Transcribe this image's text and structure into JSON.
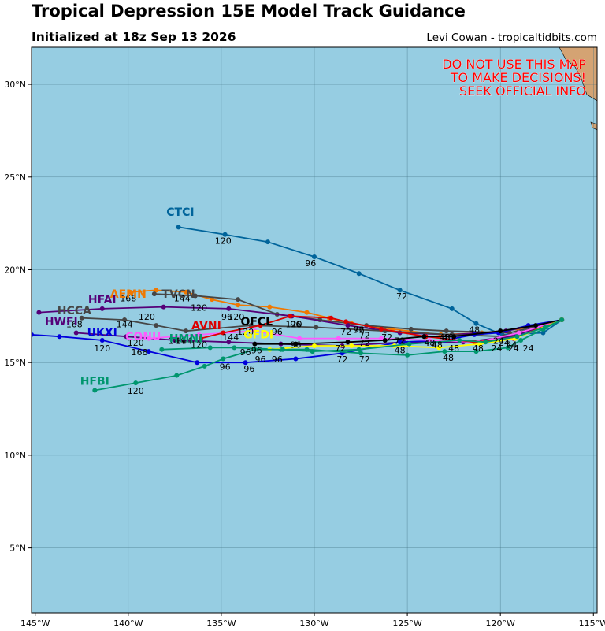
{
  "header": {
    "title": "Tropical Depression 15E Model Track Guidance",
    "subtitle": "Initialized at 18z Sep 13 2026",
    "credit": "Levi Cowan - tropicaltidbits.com"
  },
  "warning": [
    "DO NOT USE THIS MAP",
    "TO MAKE DECISIONS!",
    "SEEK OFFICIAL INFO"
  ],
  "chart_data": {
    "type": "line",
    "title": "Tropical Depression 15E Model Track Guidance",
    "xlim": [
      -145.2,
      -114.8
    ],
    "ylim": [
      1.5,
      32
    ],
    "x_ticks": [
      -145,
      -140,
      -135,
      -130,
      -125,
      -120,
      -115
    ],
    "x_tick_labels": [
      "145°W",
      "140°W",
      "135°W",
      "130°W",
      "125°W",
      "120°W",
      "115°W"
    ],
    "y_ticks": [
      5,
      10,
      15,
      20,
      25,
      30
    ],
    "y_tick_labels": [
      "5°N",
      "10°N",
      "15°N",
      "20°N",
      "25°N",
      "30°N"
    ],
    "grid": true,
    "colors": {
      "ocean": "#96cde2",
      "land": "#d4a373",
      "grid": "#3f6f80"
    },
    "series": [
      {
        "name": "CTCI",
        "color": "#00649b",
        "label_at": [
          -137.2,
          22.9
        ],
        "points": [
          [
            -116.7,
            17.3
          ],
          [
            -117.7,
            16.6
          ],
          [
            -119.9,
            16.5
          ],
          [
            -121.3,
            17.1
          ],
          [
            -122.6,
            17.9
          ],
          [
            -125.4,
            18.9
          ],
          [
            -127.6,
            19.8
          ],
          [
            -130.0,
            20.7
          ],
          [
            -132.5,
            21.5
          ],
          [
            -134.8,
            21.9
          ],
          [
            -137.3,
            22.3
          ]
        ],
        "hour_labels": [
          {
            "h": "72",
            "at": [
              -125.3,
              18.4
            ]
          },
          {
            "h": "96",
            "at": [
              -130.2,
              20.2
            ]
          },
          {
            "h": "120",
            "at": [
              -134.9,
              21.4
            ]
          }
        ]
      },
      {
        "name": "AEMN",
        "color": "#f07800",
        "label_at": [
          -140.0,
          18.5
        ],
        "points": [
          [
            -116.7,
            17.3
          ],
          [
            -119.0,
            16.8
          ],
          [
            -121.0,
            16.6
          ],
          [
            -123.2,
            16.5
          ],
          [
            -125.8,
            16.8
          ],
          [
            -128.0,
            17.1
          ],
          [
            -129.2,
            17.4
          ],
          [
            -130.4,
            17.7
          ],
          [
            -132.4,
            18.0
          ],
          [
            -134.1,
            18.1
          ],
          [
            -135.5,
            18.4
          ],
          [
            -136.9,
            18.8
          ],
          [
            -138.5,
            18.9
          ],
          [
            -139.9,
            18.8
          ]
        ],
        "hour_labels": [
          {
            "h": "144",
            "at": [
              -137.1,
              18.3
            ]
          },
          {
            "h": "168",
            "at": [
              -140.0,
              18.3
            ]
          }
        ]
      },
      {
        "name": "TVCN",
        "color": "#464646",
        "label_at": [
          -137.3,
          18.5
        ],
        "points": [
          [
            -116.7,
            17.3
          ],
          [
            -119.5,
            16.6
          ],
          [
            -122.9,
            16.7
          ],
          [
            -124.8,
            16.8
          ],
          [
            -127.2,
            17.0
          ],
          [
            -129.7,
            17.3
          ],
          [
            -132.0,
            17.6
          ],
          [
            -134.1,
            18.4
          ],
          [
            -136.4,
            18.6
          ],
          [
            -138.6,
            18.7
          ]
        ],
        "hour_labels": [
          {
            "h": "96",
            "at": [
              -134.7,
              17.3
            ]
          },
          {
            "h": "120",
            "at": [
              -136.2,
              17.8
            ]
          }
        ]
      },
      {
        "name": "HFAI",
        "color": "#550078",
        "label_at": [
          -141.4,
          18.2
        ],
        "points": [
          [
            -116.7,
            17.3
          ],
          [
            -119.7,
            16.7
          ],
          [
            -122.6,
            16.5
          ],
          [
            -125.4,
            16.6
          ],
          [
            -128.2,
            17.0
          ],
          [
            -131.2,
            17.5
          ],
          [
            -134.6,
            17.9
          ],
          [
            -138.1,
            18.0
          ],
          [
            -141.4,
            17.9
          ],
          [
            -144.8,
            17.7
          ]
        ]
      },
      {
        "name": "HCCA",
        "color": "#464646",
        "label_at": [
          -142.9,
          17.6
        ],
        "points": [
          [
            -116.7,
            17.3
          ],
          [
            -119.8,
            16.4
          ],
          [
            -122.6,
            16.5
          ],
          [
            -126.2,
            16.7
          ],
          [
            -129.9,
            16.9
          ],
          [
            -133.4,
            17.0
          ],
          [
            -136.9,
            16.7
          ],
          [
            -138.5,
            17.0
          ],
          [
            -140.2,
            17.3
          ],
          [
            -142.5,
            17.4
          ]
        ],
        "hour_labels": [
          {
            "h": "96",
            "at": [
              -131.0,
              16.9
            ]
          },
          {
            "h": "120",
            "at": [
              -139.0,
              17.3
            ]
          },
          {
            "h": "144",
            "at": [
              -140.2,
              16.9
            ]
          },
          {
            "h": "168",
            "at": [
              -142.9,
              16.9
            ]
          }
        ]
      },
      {
        "name": "HWFI",
        "color": "#550078",
        "label_at": [
          -143.6,
          17.0
        ],
        "points": [
          [
            -116.7,
            17.3
          ],
          [
            -119.4,
            16.4
          ],
          [
            -122.0,
            16.1
          ],
          [
            -125.2,
            16.1
          ],
          [
            -128.5,
            15.9
          ],
          [
            -131.8,
            16.0
          ],
          [
            -134.6,
            16.1
          ],
          [
            -137.5,
            16.2
          ],
          [
            -140.1,
            16.4
          ],
          [
            -142.8,
            16.6
          ]
        ]
      },
      {
        "name": "UKXI",
        "color": "#0000dc",
        "label_at": [
          -141.4,
          16.4
        ],
        "points": [
          [
            -116.7,
            17.3
          ],
          [
            -118.5,
            17.0
          ],
          [
            -120.1,
            16.6
          ],
          [
            -121.4,
            16.5
          ],
          [
            -123.0,
            16.2
          ],
          [
            -125.4,
            16.1
          ],
          [
            -128.5,
            15.5
          ],
          [
            -131.0,
            15.2
          ],
          [
            -133.7,
            15.0
          ],
          [
            -136.3,
            15.0
          ],
          [
            -138.9,
            15.6
          ],
          [
            -141.4,
            16.2
          ],
          [
            -143.7,
            16.4
          ],
          [
            -145.2,
            16.5
          ]
        ],
        "hour_labels": [
          {
            "h": "48",
            "at": [
              -125.4,
              15.5
            ]
          },
          {
            "h": "72",
            "at": [
              -128.5,
              15.0
            ]
          },
          {
            "h": "96",
            "at": [
              -133.5,
              14.5
            ]
          },
          {
            "h": "120",
            "at": [
              -141.4,
              15.6
            ]
          },
          {
            "h": "168",
            "at": [
              -139.4,
              15.4
            ]
          }
        ]
      },
      {
        "name": "CONU",
        "color": "#ff5aff",
        "label_at": [
          -139.2,
          16.2
        ],
        "points": [
          [
            -116.7,
            17.3
          ],
          [
            -119.0,
            16.6
          ],
          [
            -121.2,
            16.1
          ],
          [
            -123.8,
            16.2
          ],
          [
            -126.4,
            16.3
          ],
          [
            -128.7,
            16.3
          ],
          [
            -130.8,
            16.3
          ],
          [
            -133.2,
            16.7
          ],
          [
            -136.2,
            16.5
          ],
          [
            -138.9,
            16.3
          ]
        ],
        "hour_labels": [
          {
            "h": "120",
            "at": [
              -139.6,
              15.9
            ]
          }
        ]
      },
      {
        "name": "HMNI",
        "color": "#00966e",
        "label_at": [
          -136.9,
          16.1
        ],
        "points": [
          [
            -116.7,
            17.3
          ],
          [
            -117.7,
            16.8
          ],
          [
            -118.9,
            16.2
          ],
          [
            -119.6,
            15.8
          ],
          [
            -121.3,
            15.6
          ],
          [
            -123.0,
            15.6
          ],
          [
            -125.0,
            15.4
          ],
          [
            -127.5,
            15.5
          ],
          [
            -130.4,
            15.7
          ],
          [
            -131.8,
            15.7
          ],
          [
            -134.3,
            15.8
          ],
          [
            -135.6,
            15.8
          ],
          [
            -138.2,
            15.7
          ]
        ],
        "hour_labels": [
          {
            "h": "24",
            "at": [
              -118.5,
              15.6
            ]
          },
          {
            "h": "48",
            "at": [
              -122.8,
              15.1
            ]
          },
          {
            "h": "72",
            "at": [
              -127.3,
              15.0
            ]
          },
          {
            "h": "144",
            "at": [
              -137.4,
              16.0
            ]
          }
        ]
      },
      {
        "name": "AVNI",
        "color": "#dc0000",
        "label_at": [
          -135.8,
          16.8
        ],
        "points": [
          [
            -116.7,
            17.3
          ],
          [
            -119.3,
            16.3
          ],
          [
            -121.4,
            16.1
          ],
          [
            -124.0,
            16.4
          ],
          [
            -126.4,
            16.8
          ],
          [
            -128.3,
            17.2
          ],
          [
            -129.1,
            17.4
          ],
          [
            -131.3,
            17.5
          ],
          [
            -132.9,
            17.0
          ],
          [
            -134.9,
            16.6
          ],
          [
            -136.1,
            16.3
          ]
        ],
        "hour_labels": [
          {
            "h": "120",
            "at": [
              -136.2,
              15.8
            ]
          }
        ]
      },
      {
        "name": "OFCL",
        "color": "#000000",
        "label_at": [
          -133.1,
          17.0
        ],
        "points": [
          [
            -116.7,
            17.3
          ],
          [
            -118.1,
            17.0
          ],
          [
            -120.0,
            16.7
          ],
          [
            -122.5,
            16.4
          ],
          [
            -124.1,
            16.4
          ],
          [
            -126.2,
            16.2
          ],
          [
            -128.2,
            16.1
          ],
          [
            -131.0,
            16.0
          ],
          [
            -133.2,
            16.0
          ]
        ]
      },
      {
        "name": "GFDI",
        "color": "#ffff00",
        "label_at": [
          -133.0,
          16.3
        ],
        "points": [
          [
            -116.7,
            17.3
          ],
          [
            -119.2,
            16.3
          ],
          [
            -121.1,
            16.0
          ],
          [
            -123.3,
            15.8
          ],
          [
            -125.7,
            15.9
          ],
          [
            -128.0,
            15.9
          ],
          [
            -130.0,
            15.9
          ],
          [
            -132.4,
            15.7
          ]
        ]
      },
      {
        "name": "HFBI",
        "color": "#00966e",
        "label_at": [
          -141.8,
          13.8
        ],
        "points": [
          [
            -116.7,
            17.3
          ],
          [
            -117.6,
            16.9
          ],
          [
            -119.1,
            16.4
          ],
          [
            -120.8,
            16.1
          ],
          [
            -122.2,
            16.2
          ],
          [
            -124.9,
            16.0
          ],
          [
            -127.6,
            15.7
          ],
          [
            -130.1,
            15.6
          ],
          [
            -131.7,
            15.7
          ],
          [
            -133.2,
            15.7
          ],
          [
            -134.9,
            15.2
          ],
          [
            -135.9,
            14.8
          ],
          [
            -137.4,
            14.3
          ],
          [
            -139.6,
            13.9
          ],
          [
            -141.8,
            13.5
          ]
        ],
        "hour_labels": [
          {
            "h": "96",
            "at": [
              -134.8,
              14.6
            ]
          },
          {
            "h": "120",
            "at": [
              -139.6,
              13.3
            ]
          }
        ]
      }
    ],
    "extra_hour_labels": [
      {
        "h": "48",
        "at": [
          -121.4,
          16.6
        ]
      },
      {
        "h": "48",
        "at": [
          -123.8,
          15.9
        ]
      },
      {
        "h": "48",
        "at": [
          -123.4,
          15.8
        ]
      },
      {
        "h": "48",
        "at": [
          -123.0,
          16.2
        ]
      },
      {
        "h": "48",
        "at": [
          -122.5,
          15.6
        ]
      },
      {
        "h": "48",
        "at": [
          -121.2,
          15.6
        ]
      },
      {
        "h": "48",
        "at": [
          -122.8,
          16.2
        ]
      },
      {
        "h": "24",
        "at": [
          -120.1,
          16.0
        ]
      },
      {
        "h": "24",
        "at": [
          -119.8,
          15.9
        ]
      },
      {
        "h": "24",
        "at": [
          -119.3,
          15.6
        ]
      },
      {
        "h": "24",
        "at": [
          -120.2,
          15.6
        ]
      },
      {
        "h": "24",
        "at": [
          -119.4,
          15.8
        ]
      },
      {
        "h": "72",
        "at": [
          -127.6,
          16.6
        ]
      },
      {
        "h": "72",
        "at": [
          -127.3,
          16.3
        ]
      },
      {
        "h": "72",
        "at": [
          -127.3,
          15.9
        ]
      },
      {
        "h": "72",
        "at": [
          -128.6,
          15.6
        ]
      },
      {
        "h": "72",
        "at": [
          -126.1,
          16.2
        ]
      },
      {
        "h": "72",
        "at": [
          -128.3,
          16.5
        ]
      },
      {
        "h": "72",
        "at": [
          -125.4,
          16.0
        ]
      },
      {
        "h": "96",
        "at": [
          -127.6,
          16.6
        ]
      },
      {
        "h": "96",
        "at": [
          -132.0,
          16.5
        ]
      },
      {
        "h": "96",
        "at": [
          -131.0,
          15.8
        ]
      },
      {
        "h": "96",
        "at": [
          -133.1,
          15.5
        ]
      },
      {
        "h": "96",
        "at": [
          -133.7,
          15.4
        ]
      },
      {
        "h": "96",
        "at": [
          -132.0,
          15.0
        ]
      },
      {
        "h": "96",
        "at": [
          -132.9,
          15.0
        ]
      },
      {
        "h": "120",
        "at": [
          -131.1,
          16.9
        ]
      },
      {
        "h": "120",
        "at": [
          -134.2,
          17.3
        ]
      },
      {
        "h": "120",
        "at": [
          -133.7,
          16.5
        ]
      },
      {
        "h": "144",
        "at": [
          -137.0,
          16.0
        ]
      },
      {
        "h": "144",
        "at": [
          -134.5,
          16.2
        ]
      }
    ]
  }
}
